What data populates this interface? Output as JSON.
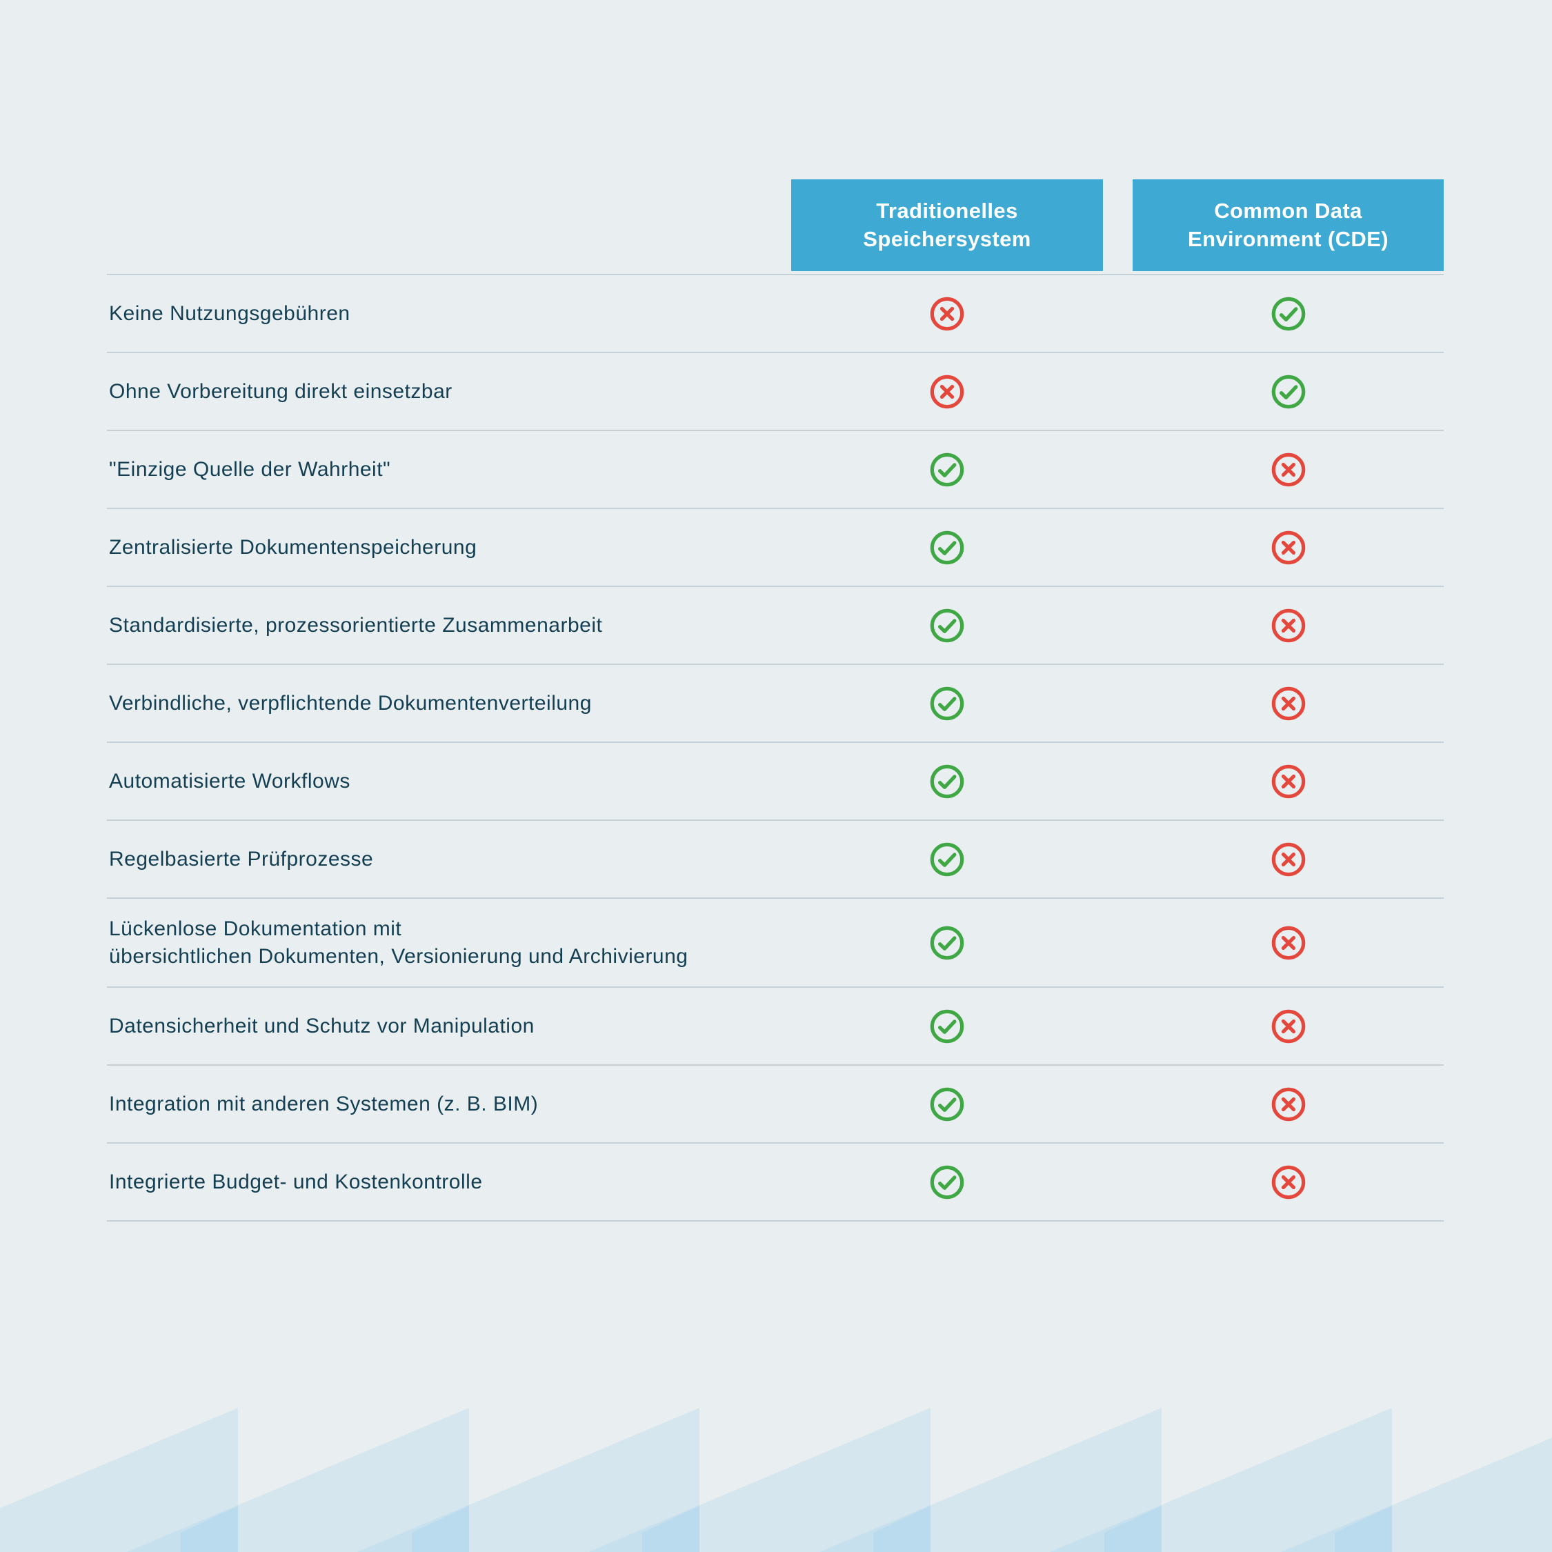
{
  "colors": {
    "header_blue": "#3EA9D2",
    "positive_green": "#3FA744",
    "negative_red": "#E4483C",
    "text_navy": "#143F52",
    "background": "#E9EEF0",
    "divider": "#C5D1D6",
    "decoration_blue": "#9ED0EC"
  },
  "table": {
    "columns": [
      {
        "id": "traditional",
        "label": "Traditionelles\nSpeichersystem"
      },
      {
        "id": "cde",
        "label": "Common Data\nEnvironment (CDE)"
      }
    ],
    "rows": [
      {
        "label": "Keine Nutzungsgebühren",
        "traditional": false,
        "cde": true
      },
      {
        "label": "Ohne Vorbereitung direkt einsetzbar",
        "traditional": false,
        "cde": true
      },
      {
        "label": "\"Einzige Quelle der Wahrheit\"",
        "traditional": true,
        "cde": false
      },
      {
        "label": "Zentralisierte Dokumentenspeicherung",
        "traditional": true,
        "cde": false
      },
      {
        "label": "Standardisierte, prozessorientierte Zusammenarbeit",
        "traditional": true,
        "cde": false
      },
      {
        "label": "Verbindliche, verpflichtende Dokumentenverteilung",
        "traditional": true,
        "cde": false
      },
      {
        "label": "Automatisierte Workflows",
        "traditional": true,
        "cde": false
      },
      {
        "label": "Regelbasierte Prüfprozesse",
        "traditional": true,
        "cde": false
      },
      {
        "label": "Lückenlose Dokumentation mit\nübersichtlichen Dokumenten, Versionierung und Archivierung",
        "traditional": true,
        "cde": false
      },
      {
        "label": "Datensicherheit und Schutz vor Manipulation",
        "traditional": true,
        "cde": false
      },
      {
        "label": "Integration mit anderen Systemen (z. B. BIM)",
        "traditional": true,
        "cde": false
      },
      {
        "label": "Integrierte Budget- und Kostenkontrolle",
        "traditional": true,
        "cde": false
      }
    ],
    "icons": {
      "positive": "check-icon",
      "negative": "cross-icon"
    }
  }
}
